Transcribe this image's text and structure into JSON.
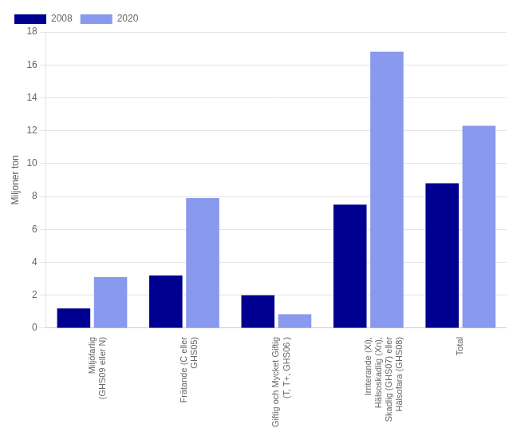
{
  "chart_data": {
    "type": "bar",
    "categories": [
      "Miljöfarlig\n(GHS09 eller N)",
      "Frätande (C eller\nGHS05)",
      "Giftig och Mycket Giftig\n(T, T+, GHS06 )",
      "Irriterande (Xi),\nHälsoskadlig (Xn),\nSkadlig (GHS07) eller\nHälsofara (GHS08)",
      "Total"
    ],
    "series": [
      {
        "name": "2008",
        "color": "#000090",
        "values": [
          1.2,
          3.2,
          2.0,
          7.5,
          8.8
        ]
      },
      {
        "name": "2020",
        "color": "#8899ee",
        "values": [
          3.1,
          7.9,
          0.85,
          16.8,
          12.3
        ]
      }
    ],
    "ylabel": "Miljoner ton",
    "ylim": [
      0,
      18
    ],
    "yticks": [
      0,
      2,
      4,
      6,
      8,
      10,
      12,
      14,
      16,
      18
    ],
    "grid": true,
    "legend": "upper left"
  }
}
